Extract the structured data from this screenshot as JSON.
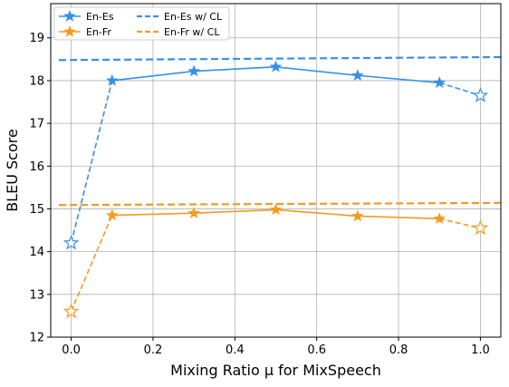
{
  "chart_data": {
    "type": "line",
    "title": "",
    "xlabel": "Mixing Ratio μ for MixSpeech",
    "ylabel": "BLEU Score",
    "xlim": [
      -0.05,
      1.05
    ],
    "ylim": [
      12,
      19.8
    ],
    "xticks": [
      0.0,
      0.2,
      0.4,
      0.6,
      0.8,
      1.0
    ],
    "xtick_labels": [
      "0.0",
      "0.2",
      "0.4",
      "0.6",
      "0.8",
      "1.0"
    ],
    "yticks": [
      12,
      13,
      14,
      15,
      16,
      17,
      18,
      19
    ],
    "ytick_labels": [
      "12",
      "13",
      "14",
      "15",
      "16",
      "17",
      "18",
      "19"
    ],
    "grid": true,
    "legend_position": "top-left",
    "series": [
      {
        "name": "En-Es",
        "color": "#3591e8",
        "marker": "star",
        "x": [
          0.0,
          0.1,
          0.3,
          0.5,
          0.7,
          0.9,
          1.0
        ],
        "y": [
          14.2,
          18.0,
          18.22,
          18.32,
          18.12,
          17.95,
          17.65
        ]
      },
      {
        "name": "En-Fr",
        "color": "#f39a22",
        "marker": "star",
        "x": [
          0.0,
          0.1,
          0.3,
          0.5,
          0.7,
          0.9,
          1.0
        ],
        "y": [
          12.6,
          14.85,
          14.9,
          14.98,
          14.83,
          14.77,
          14.55
        ]
      },
      {
        "name": "En-Es w/ CL",
        "color": "#3591e8",
        "style": "dashed",
        "x": [
          -0.03,
          1.05
        ],
        "y": [
          18.48,
          18.55
        ]
      },
      {
        "name": "En-Fr w/ CL",
        "color": "#f39a22",
        "style": "dashed",
        "x": [
          -0.03,
          1.05
        ],
        "y": [
          15.09,
          15.14
        ]
      }
    ]
  }
}
